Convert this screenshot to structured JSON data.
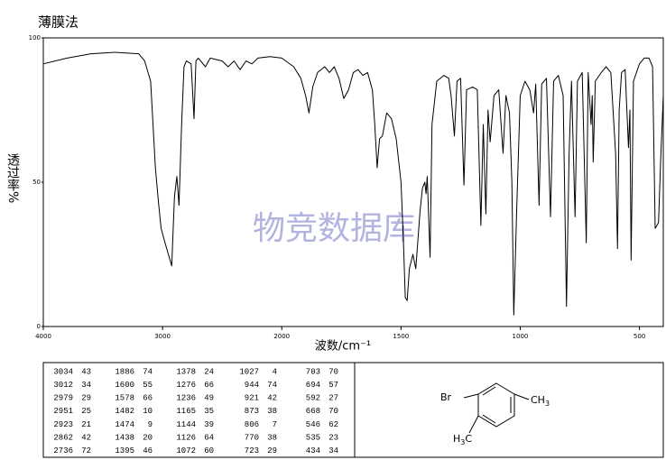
{
  "chart_data": {
    "type": "line",
    "title": "薄膜法",
    "y_label": "透过率%",
    "x_label": "波数/cm⁻¹",
    "watermark": "物竞数据库",
    "color": "#000000",
    "xlim": [
      4000,
      400
    ],
    "xscale": {
      "break": 2000,
      "ratio": 2
    },
    "xticks": [
      4000,
      3000,
      2000,
      1500,
      1000,
      500
    ],
    "ylim": [
      0,
      100
    ],
    "yticks": [
      0,
      50,
      100
    ],
    "x": [
      4000,
      3800,
      3600,
      3400,
      3200,
      3150,
      3100,
      3080,
      3060,
      3034,
      3012,
      2979,
      2951,
      2923,
      2900,
      2880,
      2862,
      2840,
      2820,
      2800,
      2760,
      2736,
      2720,
      2700,
      2640,
      2600,
      2500,
      2450,
      2400,
      2350,
      2300,
      2250,
      2200,
      2100,
      2000,
      1950,
      1920,
      1900,
      1886,
      1870,
      1850,
      1820,
      1800,
      1780,
      1760,
      1740,
      1720,
      1700,
      1680,
      1660,
      1640,
      1620,
      1610,
      1600,
      1590,
      1578,
      1560,
      1540,
      1520,
      1500,
      1490,
      1482,
      1474,
      1465,
      1450,
      1438,
      1420,
      1410,
      1400,
      1395,
      1390,
      1378,
      1370,
      1350,
      1320,
      1300,
      1290,
      1276,
      1265,
      1250,
      1236,
      1225,
      1200,
      1180,
      1165,
      1155,
      1144,
      1135,
      1126,
      1110,
      1090,
      1072,
      1060,
      1045,
      1035,
      1027,
      1015,
      1000,
      980,
      960,
      944,
      935,
      921,
      910,
      890,
      873,
      860,
      840,
      820,
      806,
      795,
      785,
      770,
      760,
      740,
      723,
      715,
      703,
      698,
      694,
      685,
      660,
      640,
      620,
      600,
      592,
      585,
      575,
      560,
      546,
      540,
      535,
      525,
      500,
      480,
      460,
      445,
      434,
      420,
      410,
      400
    ],
    "values": [
      91,
      93,
      94.5,
      95,
      94.5,
      92,
      85,
      70,
      55,
      43,
      34,
      29,
      25,
      21,
      45,
      52,
      42,
      70,
      90,
      92,
      91,
      72,
      92,
      93,
      90,
      93,
      92,
      90,
      92,
      89,
      92,
      91,
      93,
      93.5,
      93,
      90,
      86,
      80,
      74,
      83,
      88,
      90,
      88,
      90,
      86,
      79,
      82,
      88,
      89,
      87,
      88,
      82,
      70,
      55,
      65,
      66,
      74,
      72,
      65,
      50,
      30,
      10,
      9,
      20,
      25,
      20,
      40,
      48,
      50,
      46,
      52,
      24,
      70,
      85,
      87,
      86,
      80,
      66,
      85,
      86,
      49,
      82,
      83,
      82,
      35,
      70,
      39,
      75,
      64,
      80,
      82,
      60,
      80,
      74,
      50,
      4,
      40,
      80,
      85,
      82,
      74,
      84,
      42,
      84,
      86,
      38,
      85,
      87,
      80,
      7,
      60,
      85,
      38,
      85,
      88,
      29,
      88,
      70,
      80,
      57,
      85,
      88,
      90,
      88,
      60,
      27,
      75,
      88,
      89,
      62,
      75,
      23,
      85,
      91,
      93,
      93,
      90,
      34,
      36,
      60,
      80
    ],
    "peak_table": [
      [
        [
          3034,
          43
        ],
        [
          3012,
          34
        ],
        [
          2979,
          29
        ],
        [
          2951,
          25
        ],
        [
          2923,
          21
        ],
        [
          2862,
          42
        ],
        [
          2736,
          72
        ]
      ],
      [
        [
          1886,
          74
        ],
        [
          1600,
          55
        ],
        [
          1578,
          66
        ],
        [
          1482,
          10
        ],
        [
          1474,
          9
        ],
        [
          1438,
          20
        ],
        [
          1395,
          46
        ]
      ],
      [
        [
          1378,
          24
        ],
        [
          1276,
          66
        ],
        [
          1236,
          49
        ],
        [
          1165,
          35
        ],
        [
          1144,
          39
        ],
        [
          1126,
          64
        ],
        [
          1072,
          60
        ]
      ],
      [
        [
          1027,
          4
        ],
        [
          944,
          74
        ],
        [
          921,
          42
        ],
        [
          873,
          38
        ],
        [
          806,
          7
        ],
        [
          770,
          38
        ],
        [
          723,
          29
        ]
      ],
      [
        [
          703,
          70
        ],
        [
          694,
          57
        ],
        [
          592,
          27
        ],
        [
          668,
          70
        ],
        [
          546,
          62
        ],
        [
          535,
          23
        ],
        [
          434,
          34
        ]
      ]
    ],
    "structure": {
      "br": "Br",
      "ch3": [
        "CH",
        "3"
      ],
      "h3c": [
        "H",
        "3",
        "C"
      ]
    }
  }
}
